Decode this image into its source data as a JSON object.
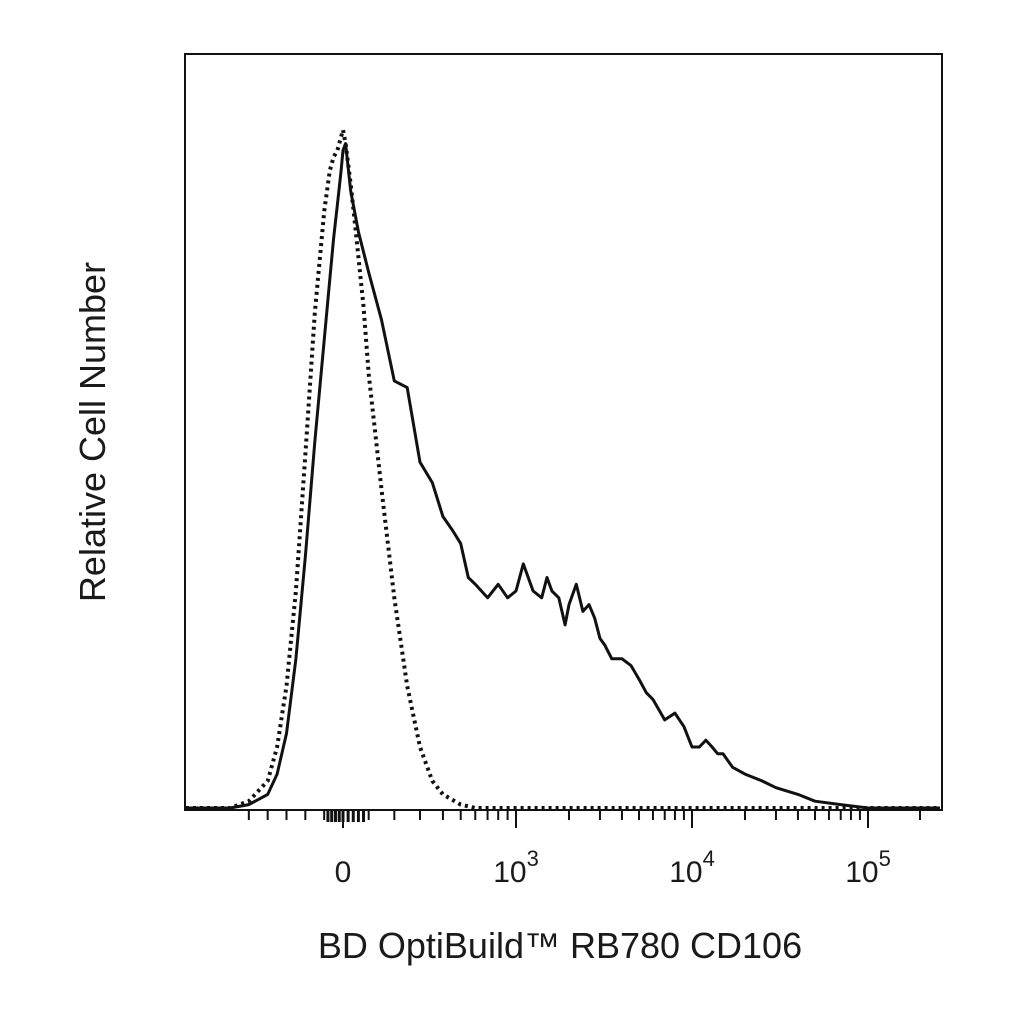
{
  "chart_data": {
    "type": "line",
    "title": "",
    "xlabel": "BD OptiBuild™ RB780 CD106",
    "ylabel": "Relative Cell Number",
    "x_scale": "biexponential",
    "xlim": [
      -600,
      200000
    ],
    "ylim": [
      0,
      1
    ],
    "grid": false,
    "legend": "none",
    "x_tick_labels": [
      {
        "value": 0,
        "base": "0",
        "exp": ""
      },
      {
        "value": 1000,
        "base": "10",
        "exp": "3"
      },
      {
        "value": 10000,
        "base": "10",
        "exp": "4"
      },
      {
        "value": 100000,
        "base": "10",
        "exp": "5"
      }
    ],
    "series": [
      {
        "style": "dotted",
        "x": [
          -600,
          -500,
          -400,
          -350,
          -300,
          -250,
          -200,
          -150,
          -100,
          -70,
          -50,
          -30,
          -10,
          0,
          10,
          30,
          50,
          80,
          100,
          150,
          200,
          250,
          300,
          350,
          400,
          500,
          600,
          800
        ],
        "y": [
          0.0,
          0.01,
          0.04,
          0.09,
          0.18,
          0.32,
          0.52,
          0.73,
          0.88,
          0.94,
          0.96,
          0.97,
          0.99,
          1.0,
          0.98,
          0.92,
          0.85,
          0.74,
          0.64,
          0.47,
          0.31,
          0.18,
          0.09,
          0.04,
          0.02,
          0.005,
          0.0,
          0.0
        ]
      },
      {
        "style": "solid",
        "x": [
          -600,
          -500,
          -400,
          -350,
          -300,
          -250,
          -200,
          -150,
          -100,
          -70,
          -50,
          -30,
          -10,
          0,
          10,
          30,
          60,
          100,
          150,
          200,
          250,
          300,
          350,
          400,
          450,
          500,
          550,
          600,
          700,
          800,
          900,
          1000,
          1100,
          1250,
          1400,
          1500,
          1600,
          1750,
          1900,
          2000,
          2200,
          2400,
          2600,
          2800,
          3000,
          3200,
          3500,
          4000,
          4500,
          5000,
          5500,
          6000,
          7000,
          8000,
          9000,
          10000,
          11000,
          12000,
          13000,
          14000,
          15000,
          17000,
          20000,
          25000,
          30000,
          40000,
          50000,
          70000,
          100000,
          200000
        ],
        "y": [
          0.0,
          0.005,
          0.02,
          0.05,
          0.11,
          0.22,
          0.37,
          0.54,
          0.69,
          0.78,
          0.84,
          0.89,
          0.94,
          0.97,
          0.98,
          0.91,
          0.85,
          0.79,
          0.72,
          0.63,
          0.62,
          0.51,
          0.48,
          0.43,
          0.41,
          0.39,
          0.34,
          0.33,
          0.31,
          0.33,
          0.31,
          0.32,
          0.36,
          0.32,
          0.31,
          0.34,
          0.32,
          0.31,
          0.27,
          0.3,
          0.33,
          0.29,
          0.3,
          0.28,
          0.25,
          0.24,
          0.22,
          0.22,
          0.21,
          0.19,
          0.17,
          0.16,
          0.13,
          0.14,
          0.12,
          0.09,
          0.09,
          0.1,
          0.09,
          0.08,
          0.08,
          0.06,
          0.05,
          0.04,
          0.03,
          0.02,
          0.01,
          0.005,
          0.0,
          0.0
        ]
      }
    ]
  }
}
